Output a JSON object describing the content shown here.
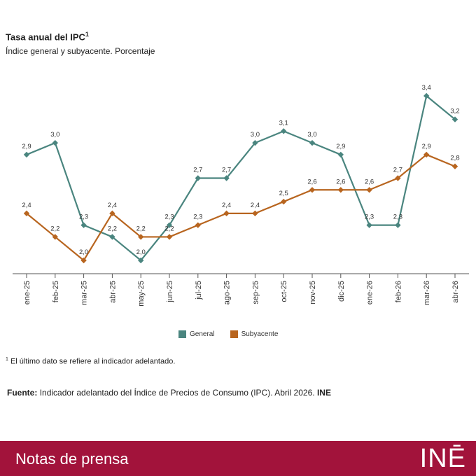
{
  "header": {
    "title": "Tasa anual del IPC",
    "title_sup": "1",
    "subtitle": "Índice general y subyacente. Porcentaje"
  },
  "chart_data": {
    "type": "line",
    "categories": [
      "ene-25",
      "feb-25",
      "mar-25",
      "abr-25",
      "may-25",
      "jun-25",
      "jul-25",
      "ago-25",
      "sep-25",
      "oct-25",
      "nov-25",
      "dic-25",
      "ene-26",
      "feb-26",
      "mar-26",
      "abr-26"
    ],
    "series": [
      {
        "name": "General",
        "color": "#4a857f",
        "values": [
          2.9,
          3.0,
          2.3,
          2.2,
          2.0,
          2.3,
          2.7,
          2.7,
          3.0,
          3.1,
          3.0,
          2.9,
          2.3,
          2.3,
          3.4,
          3.2
        ],
        "labels": [
          "2,9",
          "3,0",
          "2,3",
          "2,2",
          "2,0",
          "2,3",
          "2,7",
          "2,7",
          "3,0",
          "3,1",
          "3,0",
          "2,9",
          "2,3",
          "2,3",
          "3,4",
          "3,2"
        ]
      },
      {
        "name": "Subyacente",
        "color": "#b8651f",
        "values": [
          2.4,
          2.2,
          2.0,
          2.4,
          2.2,
          2.2,
          2.3,
          2.4,
          2.4,
          2.5,
          2.6,
          2.6,
          2.6,
          2.7,
          2.9,
          2.8
        ],
        "labels": [
          "2,4",
          "2,2",
          "2,0",
          "2,4",
          "2,2",
          "2,2",
          "2,3",
          "2,4",
          "2,4",
          "2,5",
          "2,6",
          "2,6",
          "2,6",
          "2,7",
          "2,9",
          "2,8"
        ]
      }
    ],
    "ylim": [
      1.9,
      3.5
    ],
    "grid": false,
    "legend_position": "bottom"
  },
  "legend": {
    "general": "General",
    "subyacente": "Subyacente"
  },
  "footnote": {
    "sup": "1",
    "text": "El último dato se refiere al indicador adelantado."
  },
  "source": {
    "label": "Fuente:",
    "text": "Indicador adelantado del Índice de Precios de Consumo (IPC). Abril 2026.",
    "org": "INE"
  },
  "footer": {
    "press": "Notas de prensa",
    "logo": "INĒ",
    "color": "#a2133b"
  }
}
